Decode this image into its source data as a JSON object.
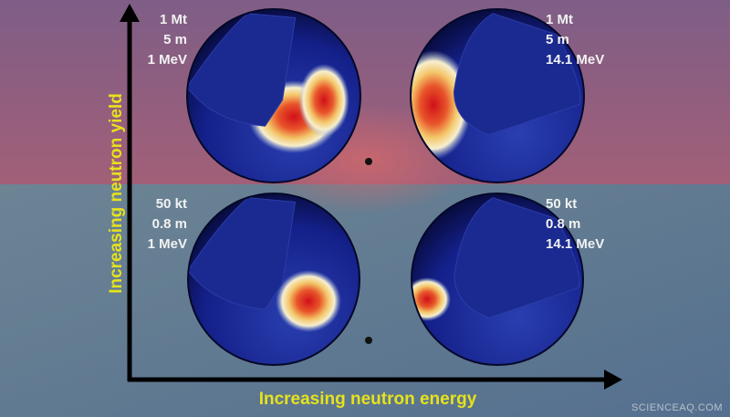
{
  "axes": {
    "y_label": "Increasing neutron yield",
    "x_label": "Increasing neutron energy"
  },
  "panels": [
    {
      "yield": "1 Mt",
      "radius": "5 m",
      "energy": "1 MeV"
    },
    {
      "yield": "1 Mt",
      "radius": "5 m",
      "energy": "14.1 MeV"
    },
    {
      "yield": "50 kt",
      "radius": "0.8 m",
      "energy": "1 MeV"
    },
    {
      "yield": "50 kt",
      "radius": "0.8 m",
      "energy": "14.1 MeV"
    }
  ],
  "watermark": "SCIENCEAQ.COM"
}
